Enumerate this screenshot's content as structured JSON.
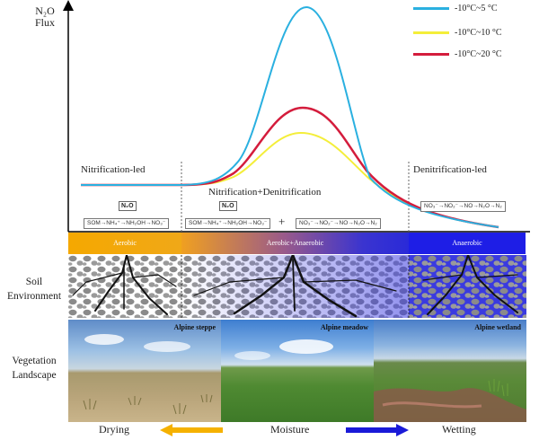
{
  "axis": {
    "y_label_line1": "N₂O",
    "y_label_line2": "Flux"
  },
  "legend": [
    {
      "label": "-10°C~5 °C",
      "color": "#2ab0e0"
    },
    {
      "label": "-10°C~10 °C",
      "color": "#f4ee3a"
    },
    {
      "label": "-10°C~20 °C",
      "color": "#d41c3c"
    }
  ],
  "phases": {
    "nitrification": "Nitrification-led",
    "mixed": "Nitrification+Denitrification",
    "denitrification": "Denitrification-led"
  },
  "pathways": {
    "n2o_tag": "N₂O",
    "nitrification_chain": "SOM→NH₄⁺→NH₂OH→NO₃⁻",
    "plus": "+",
    "denitrification_chain": "NO₃⁻→NO₂⁻→NO→N₂O→N₂"
  },
  "soil_bar": {
    "aerobic": "Aerobic",
    "mixed": "Aerobic+Anaerobic",
    "anaerobic": "Anaerobic"
  },
  "row_labels": {
    "soil_line1": "Soil",
    "soil_line2": "Environment",
    "veg_line1": "Vegetation",
    "veg_line2": "Landscape"
  },
  "photos": {
    "steppe": "Alpine steppe",
    "meadow": "Alpine meadow",
    "wetland": "Alpine wetland"
  },
  "moisture": {
    "left": "Drying",
    "center": "Moisture",
    "right": "Wetting"
  },
  "colors": {
    "aerobic": "#f5a800",
    "mixed_start": "#f0a020",
    "mixed_end": "#2a2ad8",
    "anaerobic": "#1e1ee6",
    "arrow_left": "#f5b100",
    "arrow_right": "#1a1ad8"
  }
}
